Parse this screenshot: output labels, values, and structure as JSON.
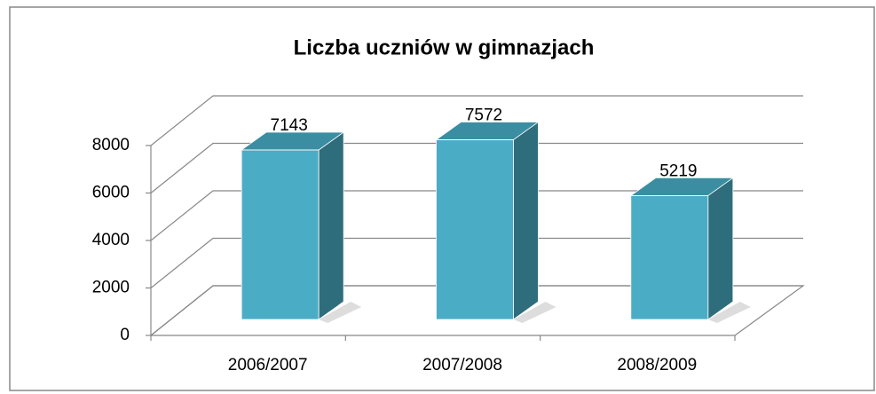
{
  "chart_data": {
    "type": "bar3d",
    "title": "Liczba uczniów w gimnazjach",
    "categories": [
      "2006/2007",
      "2007/2008",
      "2008/2009"
    ],
    "values": [
      7143,
      7572,
      5219
    ],
    "color": "#4bacc6",
    "ylim": [
      0,
      8000
    ],
    "yticks": [
      0,
      2000,
      4000,
      6000,
      8000
    ],
    "grid": true
  }
}
